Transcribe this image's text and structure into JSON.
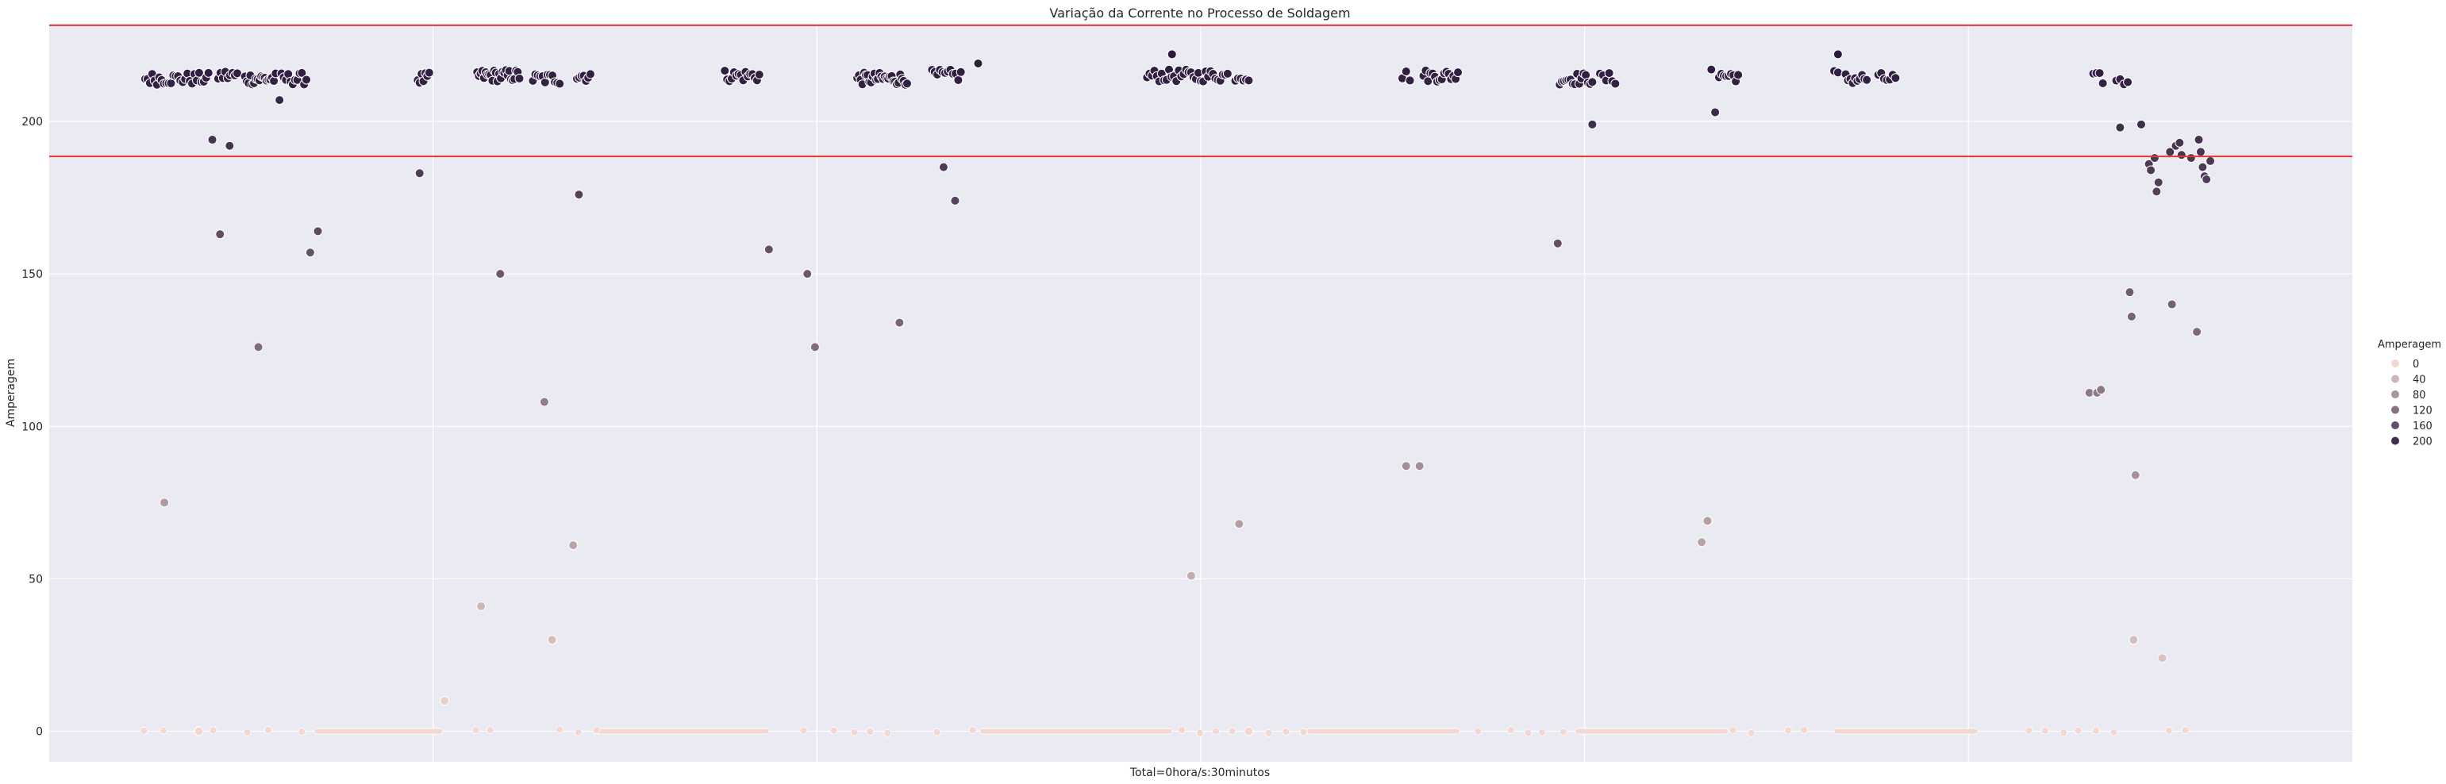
{
  "chart_data": {
    "type": "scatter",
    "title": "Variação da Corrente no Processo de Soldagem",
    "xlabel": "Total=0hora/s:30minutos",
    "ylabel": "Amperagem",
    "ylim": [
      -10,
      232
    ],
    "yticks": [
      0,
      50,
      100,
      150,
      200
    ],
    "reference_lines": [
      188.5,
      231.5
    ],
    "reference_color": "#e8392f",
    "grid": true,
    "legend": {
      "title": "Amperagem",
      "placement": "right",
      "entries": [
        "0",
        "40",
        "80",
        "120",
        "160",
        "200"
      ]
    },
    "colors": {
      "background": "#eaeaf2",
      "grid": "#ffffff",
      "low": "#f2d8d0",
      "high": "#2b1a3e"
    },
    "x_range": [
      1,
      118
    ],
    "zero_runs": [
      [
        13.8,
        20.5
      ],
      [
        28.5,
        37.5
      ],
      [
        48.5,
        58.5
      ],
      [
        65.5,
        73.5
      ],
      [
        79.5,
        87.5
      ],
      [
        93.0,
        100.5
      ]
    ],
    "clusters": [
      {
        "x": [
          5.0,
          8.3
        ],
        "yc": 214,
        "n": 28
      },
      {
        "x": [
          8.8,
          9.8
        ],
        "yc": 215,
        "n": 9
      },
      {
        "x": [
          10.2,
          11.8
        ],
        "yc": 214,
        "n": 18
      },
      {
        "x": [
          12.1,
          13.4
        ],
        "yc": 214,
        "n": 12
      },
      {
        "x": [
          19.2,
          19.8
        ],
        "yc": 214,
        "n": 7
      },
      {
        "x": [
          22.3,
          24.5
        ],
        "yc": 215,
        "n": 26
      },
      {
        "x": [
          25.2,
          26.6
        ],
        "yc": 214,
        "n": 12
      },
      {
        "x": [
          27.5,
          28.2
        ],
        "yc": 215,
        "n": 7
      },
      {
        "x": [
          35.2,
          37.0
        ],
        "yc": 215,
        "n": 16
      },
      {
        "x": [
          42.1,
          44.7
        ],
        "yc": 214,
        "n": 30
      },
      {
        "x": [
          46.0,
          47.5
        ],
        "yc": 215,
        "n": 12
      },
      {
        "x": [
          57.2,
          61.4
        ],
        "yc": 215,
        "n": 34
      },
      {
        "x": [
          61.8,
          62.5
        ],
        "yc": 215,
        "n": 6
      },
      {
        "x": [
          70.5,
          70.9
        ],
        "yc": 215,
        "n": 3
      },
      {
        "x": [
          71.6,
          73.4
        ],
        "yc": 215,
        "n": 16
      },
      {
        "x": [
          78.7,
          80.4
        ],
        "yc": 214,
        "n": 16
      },
      {
        "x": [
          80.8,
          81.6
        ],
        "yc": 214,
        "n": 6
      },
      {
        "x": [
          87.0,
          88.0
        ],
        "yc": 215,
        "n": 9
      },
      {
        "x": [
          93.0,
          93.2
        ],
        "yc": 215,
        "n": 2
      },
      {
        "x": [
          93.6,
          94.7
        ],
        "yc": 214,
        "n": 10
      },
      {
        "x": [
          95.3,
          96.2
        ],
        "yc": 214,
        "n": 7
      },
      {
        "x": [
          106.5,
          107.0
        ],
        "yc": 214,
        "n": 4
      },
      {
        "x": [
          107.7,
          108.3
        ],
        "yc": 213,
        "n": 4
      }
    ],
    "points": [
      [
        6.0,
        75
      ],
      [
        7.8,
        0
      ],
      [
        8.5,
        194
      ],
      [
        8.9,
        163
      ],
      [
        9.4,
        192
      ],
      [
        10.9,
        126
      ],
      [
        12.0,
        207
      ],
      [
        13.6,
        157
      ],
      [
        14.0,
        164
      ],
      [
        19.3,
        183
      ],
      [
        20.6,
        10
      ],
      [
        22.5,
        41
      ],
      [
        23.5,
        150
      ],
      [
        25.8,
        108
      ],
      [
        26.2,
        30
      ],
      [
        27.3,
        61
      ],
      [
        27.6,
        176
      ],
      [
        37.5,
        158
      ],
      [
        39.5,
        150
      ],
      [
        39.9,
        126
      ],
      [
        44.3,
        134
      ],
      [
        46.6,
        185
      ],
      [
        47.2,
        174
      ],
      [
        48.4,
        219
      ],
      [
        58.5,
        222
      ],
      [
        59.5,
        51
      ],
      [
        62.0,
        68
      ],
      [
        62.5,
        0
      ],
      [
        70.7,
        87
      ],
      [
        71.4,
        87
      ],
      [
        78.6,
        160
      ],
      [
        80.4,
        199
      ],
      [
        86.1,
        62
      ],
      [
        86.4,
        69
      ],
      [
        86.6,
        217
      ],
      [
        86.8,
        203
      ],
      [
        93.2,
        222
      ],
      [
        106.3,
        111
      ],
      [
        106.7,
        111
      ],
      [
        106.9,
        112
      ],
      [
        107.9,
        198
      ],
      [
        108.4,
        144
      ],
      [
        108.5,
        136
      ],
      [
        108.7,
        84
      ],
      [
        108.6,
        30
      ],
      [
        109.0,
        199
      ],
      [
        109.4,
        186
      ],
      [
        109.5,
        184
      ],
      [
        109.7,
        188
      ],
      [
        109.8,
        177
      ],
      [
        109.9,
        180
      ],
      [
        110.1,
        24
      ],
      [
        110.5,
        190
      ],
      [
        110.6,
        140
      ],
      [
        110.8,
        192
      ],
      [
        111.0,
        193
      ],
      [
        111.1,
        189
      ],
      [
        111.6,
        188
      ],
      [
        111.9,
        131
      ],
      [
        112.0,
        194
      ],
      [
        112.1,
        190
      ],
      [
        112.2,
        185
      ],
      [
        112.3,
        182
      ],
      [
        112.4,
        181
      ],
      [
        112.6,
        187
      ]
    ]
  }
}
